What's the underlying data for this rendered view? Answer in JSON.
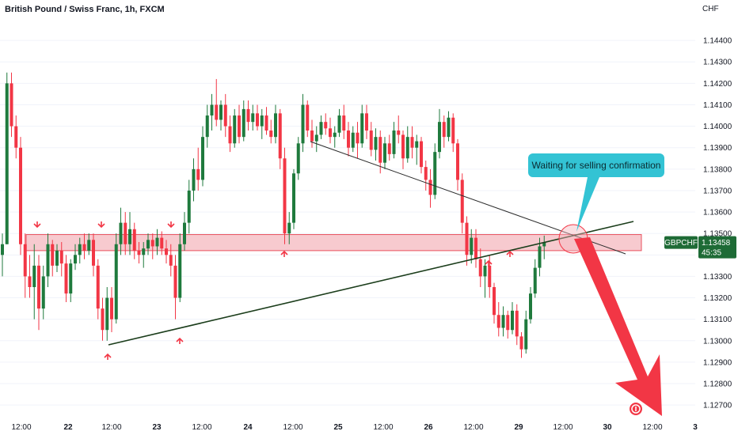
{
  "header": {
    "title": "British Pound / Swiss Franc, 1h, FXCM",
    "currency": "CHF"
  },
  "price_tag": {
    "symbol": "GBPCHF",
    "price": "1.13458",
    "countdown": "45:35"
  },
  "colors": {
    "bull": "#1f7a3d",
    "bear": "#f23645",
    "zone_fill": "#f4b8bf",
    "zone_stroke": "#e8515f",
    "trendline_support": "#1b3d1b",
    "trendline_resistance": "#2a2a2a",
    "callout": "#33c3d4",
    "forecast_arrow": "#f23645",
    "tag": "#1e6b36"
  },
  "annotation": {
    "text": "Waiting for selling confirmation"
  },
  "chart_data": {
    "type": "candlestick",
    "title": "British Pound / Swiss Franc, 1h, FXCM",
    "ylabel": "CHF",
    "ylim": [
      1.1266,
      1.145
    ],
    "yticks": [
      "1.14400",
      "1.14300",
      "1.14200",
      "1.14100",
      "1.14000",
      "1.13900",
      "1.13800",
      "1.13700",
      "1.13600",
      "1.13500",
      "1.13400",
      "1.13300",
      "1.13200",
      "1.13100",
      "1.13000",
      "1.12900",
      "1.12800",
      "1.12700"
    ],
    "xticks": [
      "12:00",
      "22",
      "12:00",
      "23",
      "12:00",
      "24",
      "12:00",
      "25",
      "12:00",
      "26",
      "12:00",
      "29",
      "12:00",
      "30",
      "12:00",
      "3"
    ],
    "last_price": 1.13458,
    "resistance_zone": [
      1.1342,
      1.13495
    ],
    "support_trendline": [
      [
        0,
        1.13025
      ],
      [
        155,
        1.1353
      ]
    ],
    "resistance_trendline": [
      [
        90,
        1.1388
      ],
      [
        155,
        1.1338
      ]
    ],
    "forecast_target": 1.1271,
    "ohlc": [
      [
        1.134,
        1.135,
        1.133,
        1.1345
      ],
      [
        1.1345,
        1.1425,
        1.1345,
        1.142
      ],
      [
        1.142,
        1.1425,
        1.1395,
        1.14
      ],
      [
        1.14,
        1.1405,
        1.1385,
        1.139
      ],
      [
        1.139,
        1.1395,
        1.134,
        1.1345
      ],
      [
        1.1345,
        1.135,
        1.132,
        1.133
      ],
      [
        1.133,
        1.134,
        1.132,
        1.1325
      ],
      [
        1.1325,
        1.1345,
        1.131,
        1.1335
      ],
      [
        1.1335,
        1.134,
        1.1305,
        1.1315
      ],
      [
        1.1315,
        1.1335,
        1.131,
        1.133
      ],
      [
        1.133,
        1.135,
        1.1325,
        1.1345
      ],
      [
        1.1345,
        1.1347,
        1.133,
        1.1335
      ],
      [
        1.1335,
        1.1345,
        1.1332,
        1.1342
      ],
      [
        1.1342,
        1.1346,
        1.133,
        1.1336
      ],
      [
        1.1336,
        1.134,
        1.1318,
        1.1322
      ],
      [
        1.1322,
        1.1338,
        1.1318,
        1.1336
      ],
      [
        1.1336,
        1.1345,
        1.1333,
        1.134
      ],
      [
        1.134,
        1.1348,
        1.1336,
        1.1345
      ],
      [
        1.1345,
        1.135,
        1.1338,
        1.1342
      ],
      [
        1.1342,
        1.135,
        1.134,
        1.1347
      ],
      [
        1.1347,
        1.135,
        1.133,
        1.1335
      ],
      [
        1.1335,
        1.1338,
        1.131,
        1.1315
      ],
      [
        1.1315,
        1.132,
        1.13,
        1.1305
      ],
      [
        1.1305,
        1.1325,
        1.13,
        1.132
      ],
      [
        1.132,
        1.1325,
        1.1304,
        1.131
      ],
      [
        1.131,
        1.135,
        1.1308,
        1.1345
      ],
      [
        1.1345,
        1.1362,
        1.134,
        1.1355
      ],
      [
        1.1355,
        1.136,
        1.134,
        1.1345
      ],
      [
        1.1345,
        1.136,
        1.134,
        1.1352
      ],
      [
        1.1352,
        1.1355,
        1.1338,
        1.1342
      ],
      [
        1.1342,
        1.1346,
        1.1336,
        1.134
      ],
      [
        1.134,
        1.1346,
        1.1334,
        1.1343
      ],
      [
        1.1343,
        1.135,
        1.134,
        1.1347
      ],
      [
        1.1347,
        1.135,
        1.1338,
        1.1344
      ],
      [
        1.1344,
        1.1352,
        1.134,
        1.1348
      ],
      [
        1.1348,
        1.1351,
        1.134,
        1.1343
      ],
      [
        1.1343,
        1.1347,
        1.1336,
        1.134
      ],
      [
        1.134,
        1.1345,
        1.133,
        1.1335
      ],
      [
        1.1335,
        1.134,
        1.131,
        1.132
      ],
      [
        1.132,
        1.135,
        1.1318,
        1.1345
      ],
      [
        1.1345,
        1.136,
        1.1342,
        1.1355
      ],
      [
        1.1355,
        1.1375,
        1.135,
        1.137
      ],
      [
        1.137,
        1.1385,
        1.1365,
        1.138
      ],
      [
        1.138,
        1.139,
        1.137,
        1.1375
      ],
      [
        1.1375,
        1.14,
        1.1372,
        1.1395
      ],
      [
        1.1395,
        1.141,
        1.139,
        1.1405
      ],
      [
        1.1405,
        1.1415,
        1.1398,
        1.141
      ],
      [
        1.141,
        1.1422,
        1.14,
        1.1403
      ],
      [
        1.1403,
        1.1412,
        1.1398,
        1.141
      ],
      [
        1.141,
        1.1415,
        1.1395,
        1.14
      ],
      [
        1.14,
        1.1405,
        1.1388,
        1.1392
      ],
      [
        1.1392,
        1.1408,
        1.139,
        1.1405
      ],
      [
        1.1405,
        1.141,
        1.1392,
        1.1395
      ],
      [
        1.1395,
        1.1412,
        1.1393,
        1.1408
      ],
      [
        1.1408,
        1.1412,
        1.1398,
        1.1402
      ],
      [
        1.1402,
        1.141,
        1.1398,
        1.1406
      ],
      [
        1.1406,
        1.141,
        1.1398,
        1.14
      ],
      [
        1.14,
        1.1408,
        1.1394,
        1.1405
      ],
      [
        1.1405,
        1.1409,
        1.1396,
        1.1398
      ],
      [
        1.1398,
        1.1403,
        1.1392,
        1.1395
      ],
      [
        1.1395,
        1.141,
        1.1392,
        1.1406
      ],
      [
        1.1406,
        1.1408,
        1.138,
        1.1385
      ],
      [
        1.1385,
        1.139,
        1.1345,
        1.135
      ],
      [
        1.135,
        1.136,
        1.1345,
        1.1355
      ],
      [
        1.1355,
        1.138,
        1.1352,
        1.1378
      ],
      [
        1.1378,
        1.1395,
        1.1375,
        1.1392
      ],
      [
        1.1392,
        1.1415,
        1.1388,
        1.141
      ],
      [
        1.141,
        1.1412,
        1.1395,
        1.1398
      ],
      [
        1.1398,
        1.1403,
        1.139,
        1.1393
      ],
      [
        1.1393,
        1.14,
        1.1388,
        1.1396
      ],
      [
        1.1396,
        1.1405,
        1.1394,
        1.1402
      ],
      [
        1.1402,
        1.1406,
        1.1396,
        1.1399
      ],
      [
        1.1399,
        1.1404,
        1.1392,
        1.1395
      ],
      [
        1.1395,
        1.14,
        1.139,
        1.1397
      ],
      [
        1.1397,
        1.1408,
        1.1395,
        1.1405
      ],
      [
        1.1405,
        1.141,
        1.1394,
        1.1398
      ],
      [
        1.1398,
        1.1402,
        1.1386,
        1.139
      ],
      [
        1.139,
        1.14,
        1.1388,
        1.1397
      ],
      [
        1.1397,
        1.1402,
        1.1385,
        1.1392
      ],
      [
        1.1392,
        1.141,
        1.139,
        1.1406
      ],
      [
        1.1406,
        1.141,
        1.1394,
        1.1398
      ],
      [
        1.1398,
        1.1402,
        1.1386,
        1.1389
      ],
      [
        1.1389,
        1.1399,
        1.1384,
        1.1395
      ],
      [
        1.1395,
        1.1398,
        1.1378,
        1.1383
      ],
      [
        1.1383,
        1.1395,
        1.138,
        1.1392
      ],
      [
        1.1392,
        1.1396,
        1.1384,
        1.1387
      ],
      [
        1.1387,
        1.1402,
        1.1385,
        1.1398
      ],
      [
        1.1398,
        1.1405,
        1.1392,
        1.1396
      ],
      [
        1.1396,
        1.1398,
        1.138,
        1.1385
      ],
      [
        1.1385,
        1.14,
        1.1383,
        1.1395
      ],
      [
        1.1395,
        1.14,
        1.1385,
        1.139
      ],
      [
        1.139,
        1.1396,
        1.1382,
        1.1393
      ],
      [
        1.1393,
        1.1395,
        1.1378,
        1.1381
      ],
      [
        1.1381,
        1.1384,
        1.137,
        1.1375
      ],
      [
        1.1375,
        1.138,
        1.1362,
        1.1368
      ],
      [
        1.1368,
        1.1392,
        1.1366,
        1.1388
      ],
      [
        1.1388,
        1.1408,
        1.1385,
        1.1402
      ],
      [
        1.1402,
        1.1405,
        1.139,
        1.1395
      ],
      [
        1.1395,
        1.1407,
        1.1393,
        1.1404
      ],
      [
        1.1404,
        1.1406,
        1.1388,
        1.1392
      ],
      [
        1.1392,
        1.1394,
        1.137,
        1.1375
      ],
      [
        1.1375,
        1.1378,
        1.135,
        1.1355
      ],
      [
        1.1355,
        1.1358,
        1.1335,
        1.134
      ],
      [
        1.134,
        1.1352,
        1.1336,
        1.1348
      ],
      [
        1.1348,
        1.1352,
        1.1334,
        1.1338
      ],
      [
        1.1338,
        1.1343,
        1.1325,
        1.133
      ],
      [
        1.133,
        1.1338,
        1.132,
        1.1335
      ],
      [
        1.1335,
        1.134,
        1.132,
        1.1325
      ],
      [
        1.1325,
        1.1327,
        1.1308,
        1.1312
      ],
      [
        1.1312,
        1.1318,
        1.1302,
        1.1306
      ],
      [
        1.1306,
        1.1316,
        1.1302,
        1.1312
      ],
      [
        1.1312,
        1.1314,
        1.1301,
        1.1305
      ],
      [
        1.1305,
        1.1318,
        1.1303,
        1.1314
      ],
      [
        1.1314,
        1.1317,
        1.1298,
        1.1302
      ],
      [
        1.1302,
        1.1304,
        1.1292,
        1.1296
      ],
      [
        1.1296,
        1.1314,
        1.1294,
        1.131
      ],
      [
        1.131,
        1.1325,
        1.1308,
        1.1322
      ],
      [
        1.1322,
        1.1338,
        1.132,
        1.1334
      ],
      [
        1.1334,
        1.1348,
        1.133,
        1.1344
      ],
      [
        1.1344,
        1.1349,
        1.1338,
        1.13458
      ]
    ],
    "markers": [
      {
        "i": 2,
        "dir": "down",
        "price": 1.13504
      },
      {
        "i": 15,
        "dir": "down",
        "price": 1.13504
      },
      {
        "i": 22,
        "dir": "up",
        "price": 1.1299
      },
      {
        "i": 28,
        "dir": "down",
        "price": 1.13504
      },
      {
        "i": 38,
        "dir": "up",
        "price": 1.1305
      },
      {
        "i": 60,
        "dir": "up",
        "price": 1.1342
      },
      {
        "i": 110,
        "dir": "up",
        "price": 1.1334
      },
      {
        "i": 113,
        "dir": "up",
        "price": 1.1342
      }
    ]
  }
}
